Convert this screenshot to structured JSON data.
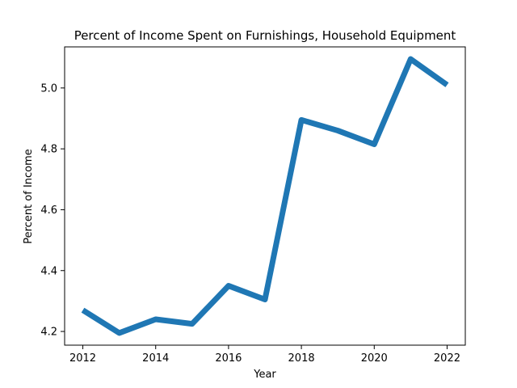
{
  "chart_data": {
    "type": "line",
    "title": "Percent of Income Spent on Furnishings, Household Equipment",
    "xlabel": "Year",
    "ylabel": "Percent of Income",
    "x": [
      2012,
      2013,
      2014,
      2015,
      2016,
      2017,
      2018,
      2019,
      2020,
      2021,
      2022
    ],
    "series": [
      {
        "values": [
          4.27,
          4.195,
          4.24,
          4.225,
          4.35,
          4.305,
          4.895,
          4.86,
          4.815,
          5.095,
          5.01
        ],
        "color": "#1f77b4"
      }
    ],
    "xlim": [
      2011.5,
      2022.5
    ],
    "ylim": [
      4.155,
      5.135
    ],
    "xticks": [
      {
        "value": 2012,
        "label": "2012"
      },
      {
        "value": 2014,
        "label": "2014"
      },
      {
        "value": 2016,
        "label": "2016"
      },
      {
        "value": 2018,
        "label": "2018"
      },
      {
        "value": 2020,
        "label": "2020"
      },
      {
        "value": 2022,
        "label": "2022"
      }
    ],
    "yticks": [
      {
        "value": 4.2,
        "label": "4.2"
      },
      {
        "value": 4.4,
        "label": "4.4"
      },
      {
        "value": 4.6,
        "label": "4.6"
      },
      {
        "value": 4.8,
        "label": "4.8"
      },
      {
        "value": 5.0,
        "label": "5.0"
      }
    ],
    "grid": false,
    "legend": "none"
  }
}
